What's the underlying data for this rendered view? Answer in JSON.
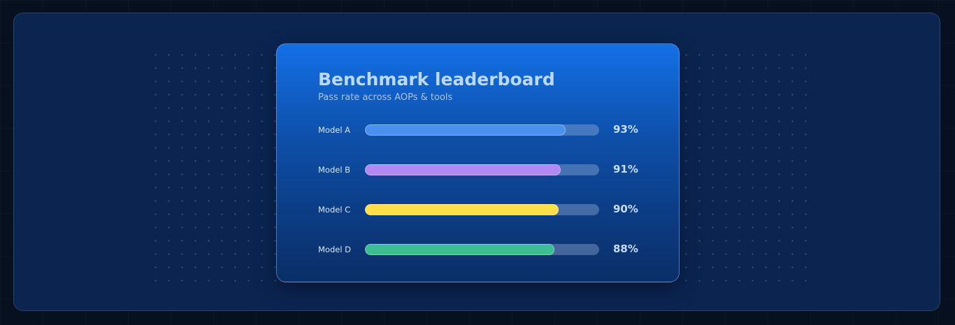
{
  "card": {
    "title": "Benchmark leaderboard",
    "subtitle": "Pass rate across AOPs & tools"
  },
  "chart_data": {
    "type": "bar",
    "orientation": "horizontal",
    "title": "Benchmark leaderboard",
    "subtitle": "Pass rate across AOPs & tools",
    "categories": [
      "Model A",
      "Model B",
      "Model C",
      "Model D"
    ],
    "values": [
      93,
      91,
      90,
      88
    ],
    "value_labels": [
      "93%",
      "91%",
      "90%",
      "88%"
    ],
    "unit": "%",
    "xlim": [
      0,
      100
    ],
    "bar_colors": [
      "#4a90f0",
      "#b089f2",
      "#fde047",
      "#3dbd95"
    ],
    "track_color": "#6f88b0",
    "grid": false,
    "legend": "none"
  }
}
